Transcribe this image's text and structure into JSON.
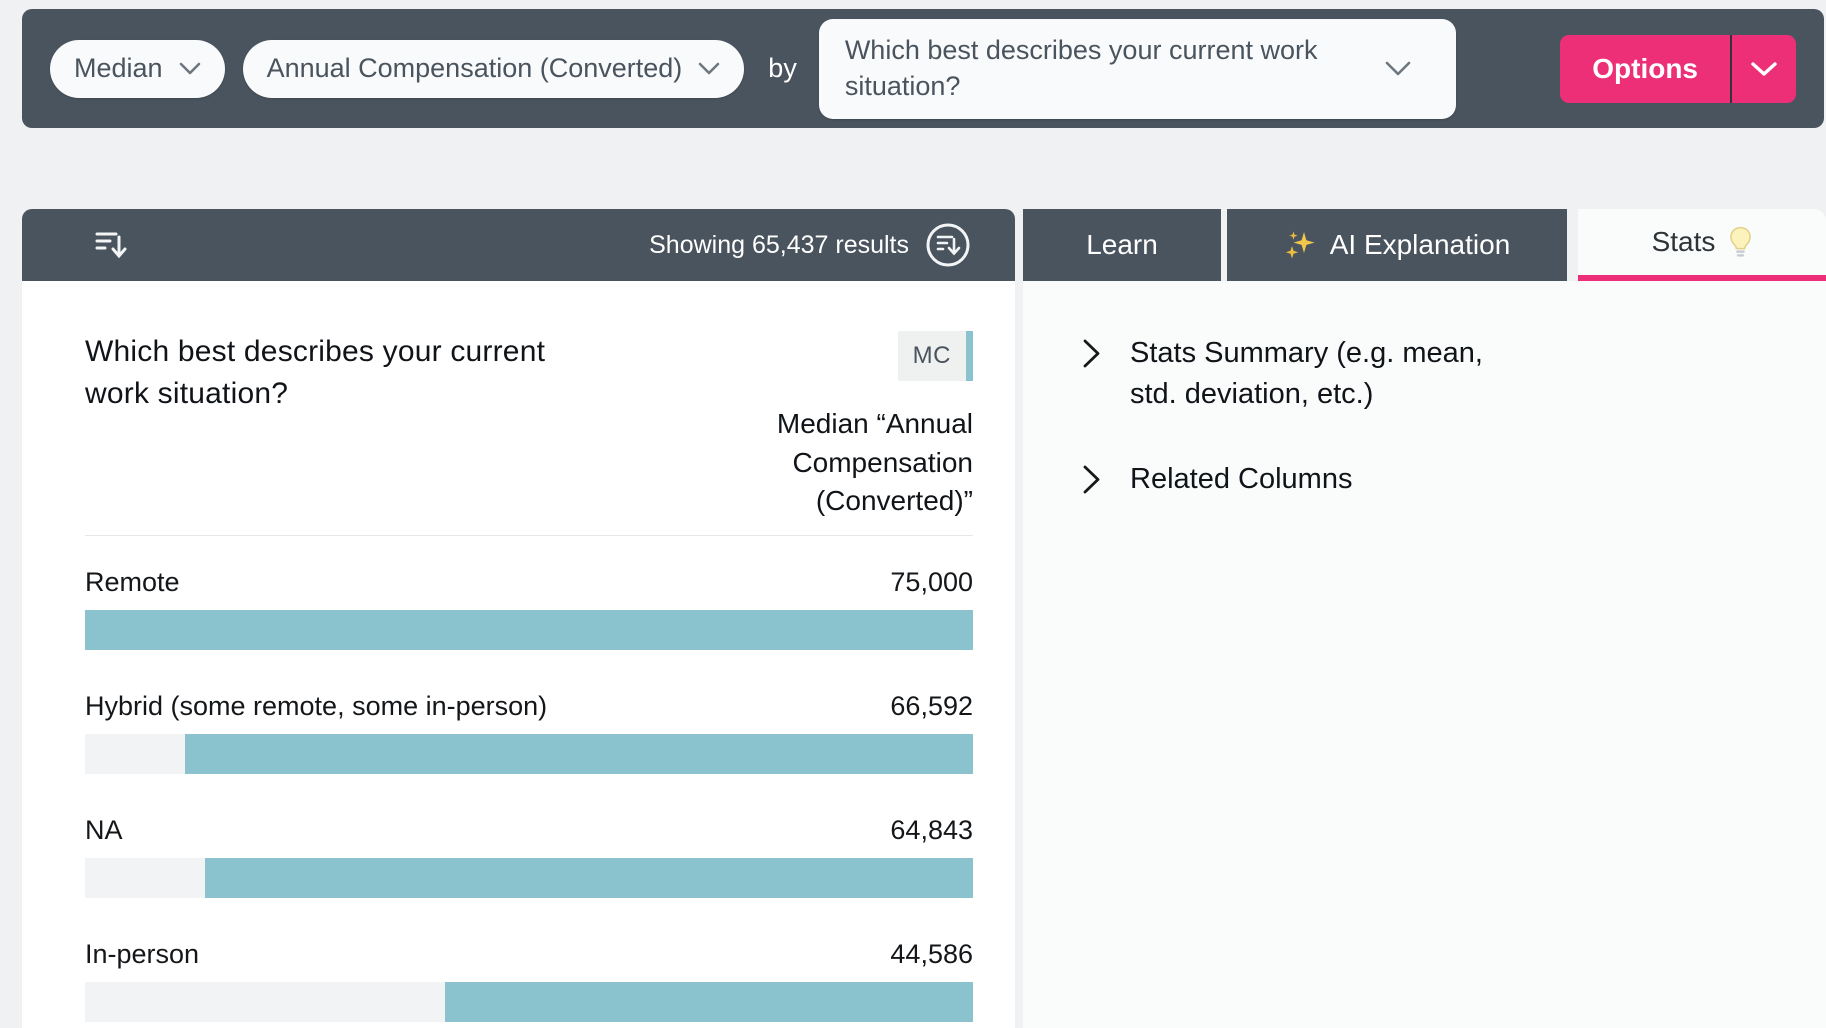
{
  "toolbar": {
    "aggregation": {
      "value": "Median"
    },
    "measure": {
      "value": "Annual Compensation (Converted)"
    },
    "by_label": "by",
    "group_by": {
      "value": "Which best describes your current work situation?"
    },
    "options_button": {
      "label": "Options"
    }
  },
  "results_bar": {
    "showing_text": "Showing 65,437 results",
    "left_icon": "sort-descending-icon",
    "right_icon": "sort-descending-circle-icon"
  },
  "tabs": [
    {
      "label": "Learn",
      "active": false
    },
    {
      "label": "AI Explanation",
      "icon": "sparkles-icon",
      "active": false
    },
    {
      "label": "Stats",
      "icon": "lightbulb-icon",
      "active": true
    }
  ],
  "side_panel": {
    "items": [
      {
        "label": "Stats Summary (e.g. mean, std. deviation, etc.)",
        "icon": "chevron-right-icon"
      },
      {
        "label": "Related Columns",
        "icon": "chevron-right-icon"
      }
    ]
  },
  "card": {
    "question_title": "Which best describes your current work situation?",
    "type_badge": "MC",
    "measure_header": "Median “Annual Compensation (Converted)”"
  },
  "chart_data": {
    "type": "bar",
    "orientation": "horizontal",
    "bars_right_aligned": true,
    "title": "Median “Annual Compensation (Converted)” by Which best describes your current work situation?",
    "categories": [
      "Remote",
      "Hybrid (some remote, some in-person)",
      "NA",
      "In-person"
    ],
    "values": [
      75000,
      66592,
      64843,
      44586
    ],
    "value_labels": [
      "75,000",
      "66,592",
      "64,843",
      "44,586"
    ],
    "xlim": [
      0,
      75000
    ],
    "bar_color": "#8AC3CD",
    "track_color": "#F1F3F4"
  },
  "colors": {
    "toolbar_bg": "#4A545E",
    "accent_pink": "#EC2F77",
    "bar_teal": "#8AC3CD",
    "panel_bg": "#FAFBFB",
    "page_bg": "#EFF1F2"
  }
}
